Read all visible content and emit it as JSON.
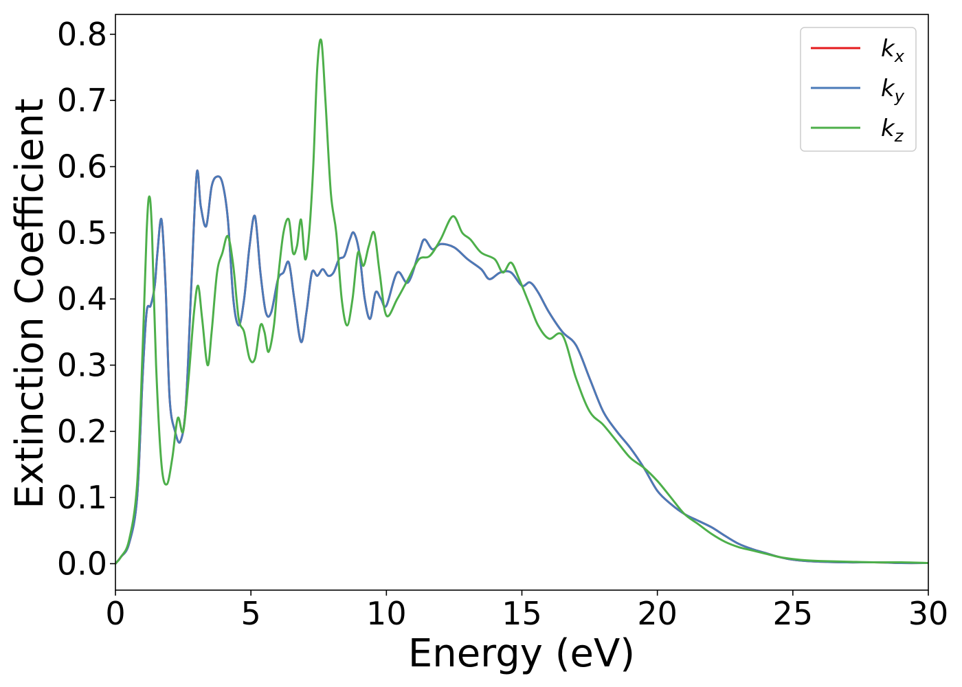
{
  "chart_data": {
    "type": "line",
    "title": "",
    "xlabel": "Energy (eV)",
    "ylabel": "Extinction Coefficient",
    "xlim": [
      0,
      30
    ],
    "ylim": [
      -0.04,
      0.83
    ],
    "xticks": [
      0,
      5,
      10,
      15,
      20,
      25,
      30
    ],
    "xtick_labels": [
      "0",
      "5",
      "10",
      "15",
      "20",
      "25",
      "30"
    ],
    "yticks": [
      0.0,
      0.1,
      0.2,
      0.3,
      0.4,
      0.5,
      0.6,
      0.7,
      0.8
    ],
    "ytick_labels": [
      "0.0",
      "0.1",
      "0.2",
      "0.3",
      "0.4",
      "0.5",
      "0.6",
      "0.7",
      "0.8"
    ],
    "grid": false,
    "legend": {
      "position": "top-right"
    },
    "series": [
      {
        "name": "kx",
        "legend_main": "k",
        "legend_sub": "x",
        "color": "#e41a1c",
        "x": [
          0,
          0.2,
          0.5,
          0.8,
          1.0,
          1.15,
          1.3,
          1.45,
          1.55,
          1.7,
          1.85,
          2.0,
          2.2,
          2.4,
          2.6,
          2.8,
          3.0,
          3.15,
          3.35,
          3.55,
          3.75,
          3.95,
          4.15,
          4.35,
          4.55,
          4.75,
          4.95,
          5.15,
          5.35,
          5.55,
          5.75,
          6.0,
          6.2,
          6.4,
          6.6,
          6.85,
          7.05,
          7.25,
          7.45,
          7.65,
          7.85,
          8.05,
          8.25,
          8.45,
          8.65,
          8.8,
          9.0,
          9.2,
          9.4,
          9.6,
          9.8,
          10.0,
          10.4,
          10.8,
          11.2,
          11.4,
          11.7,
          12.0,
          12.5,
          13.0,
          13.5,
          13.8,
          14.2,
          14.6,
          15.0,
          15.3,
          15.6,
          16.0,
          16.5,
          17.0,
          17.5,
          18.0,
          18.5,
          19.0,
          19.5,
          20.0,
          20.5,
          21.0,
          21.5,
          22.0,
          22.5,
          23.0,
          23.5,
          24.0,
          24.5,
          25.0,
          25.5,
          26.0,
          27.0,
          28.0,
          29.0,
          30.0
        ],
        "y": [
          0.0,
          0.01,
          0.03,
          0.1,
          0.28,
          0.38,
          0.39,
          0.42,
          0.47,
          0.52,
          0.42,
          0.25,
          0.2,
          0.185,
          0.24,
          0.42,
          0.59,
          0.54,
          0.51,
          0.57,
          0.585,
          0.575,
          0.52,
          0.4,
          0.36,
          0.4,
          0.48,
          0.525,
          0.44,
          0.38,
          0.38,
          0.43,
          0.44,
          0.455,
          0.4,
          0.335,
          0.38,
          0.44,
          0.435,
          0.445,
          0.435,
          0.44,
          0.46,
          0.465,
          0.49,
          0.5,
          0.47,
          0.4,
          0.37,
          0.41,
          0.4,
          0.39,
          0.44,
          0.425,
          0.47,
          0.49,
          0.475,
          0.483,
          0.478,
          0.46,
          0.445,
          0.43,
          0.44,
          0.44,
          0.42,
          0.425,
          0.41,
          0.38,
          0.35,
          0.33,
          0.28,
          0.23,
          0.2,
          0.175,
          0.145,
          0.11,
          0.09,
          0.075,
          0.065,
          0.055,
          0.042,
          0.03,
          0.022,
          0.016,
          0.01,
          0.006,
          0.004,
          0.003,
          0.002,
          0.002,
          0.001,
          0.001
        ]
      },
      {
        "name": "ky",
        "legend_main": "k",
        "legend_sub": "y",
        "color": "#4a7ab8",
        "x": [
          0,
          0.2,
          0.5,
          0.8,
          1.0,
          1.15,
          1.3,
          1.45,
          1.55,
          1.7,
          1.85,
          2.0,
          2.2,
          2.4,
          2.6,
          2.8,
          3.0,
          3.15,
          3.35,
          3.55,
          3.75,
          3.95,
          4.15,
          4.35,
          4.55,
          4.75,
          4.95,
          5.15,
          5.35,
          5.55,
          5.75,
          6.0,
          6.2,
          6.4,
          6.6,
          6.85,
          7.05,
          7.25,
          7.45,
          7.65,
          7.85,
          8.05,
          8.25,
          8.45,
          8.65,
          8.8,
          9.0,
          9.2,
          9.4,
          9.6,
          9.8,
          10.0,
          10.4,
          10.8,
          11.2,
          11.4,
          11.7,
          12.0,
          12.5,
          13.0,
          13.5,
          13.8,
          14.2,
          14.6,
          15.0,
          15.3,
          15.6,
          16.0,
          16.5,
          17.0,
          17.5,
          18.0,
          18.5,
          19.0,
          19.5,
          20.0,
          20.5,
          21.0,
          21.5,
          22.0,
          22.5,
          23.0,
          23.5,
          24.0,
          24.5,
          25.0,
          25.5,
          26.0,
          27.0,
          28.0,
          29.0,
          30.0
        ],
        "y": [
          0.0,
          0.01,
          0.03,
          0.1,
          0.28,
          0.38,
          0.39,
          0.42,
          0.47,
          0.52,
          0.42,
          0.25,
          0.2,
          0.185,
          0.24,
          0.42,
          0.59,
          0.54,
          0.51,
          0.57,
          0.585,
          0.575,
          0.52,
          0.4,
          0.36,
          0.4,
          0.48,
          0.525,
          0.44,
          0.38,
          0.38,
          0.43,
          0.44,
          0.455,
          0.4,
          0.335,
          0.38,
          0.44,
          0.435,
          0.445,
          0.435,
          0.44,
          0.46,
          0.465,
          0.49,
          0.5,
          0.47,
          0.4,
          0.37,
          0.41,
          0.4,
          0.39,
          0.44,
          0.425,
          0.47,
          0.49,
          0.475,
          0.483,
          0.478,
          0.46,
          0.445,
          0.43,
          0.44,
          0.44,
          0.42,
          0.425,
          0.41,
          0.38,
          0.35,
          0.33,
          0.28,
          0.23,
          0.2,
          0.175,
          0.145,
          0.11,
          0.09,
          0.075,
          0.065,
          0.055,
          0.042,
          0.03,
          0.022,
          0.016,
          0.01,
          0.006,
          0.004,
          0.003,
          0.002,
          0.002,
          0.001,
          0.001
        ]
      },
      {
        "name": "kz",
        "legend_main": "k",
        "legend_sub": "z",
        "color": "#4daf4a",
        "x": [
          0,
          0.2,
          0.5,
          0.8,
          1.0,
          1.15,
          1.25,
          1.35,
          1.5,
          1.7,
          1.9,
          2.1,
          2.3,
          2.5,
          2.7,
          2.9,
          3.05,
          3.2,
          3.4,
          3.55,
          3.75,
          3.95,
          4.15,
          4.35,
          4.55,
          4.75,
          4.95,
          5.15,
          5.35,
          5.5,
          5.65,
          5.85,
          6.0,
          6.2,
          6.4,
          6.55,
          6.7,
          6.85,
          7.0,
          7.15,
          7.3,
          7.45,
          7.6,
          7.75,
          7.95,
          8.15,
          8.35,
          8.55,
          8.75,
          8.95,
          9.15,
          9.35,
          9.55,
          9.75,
          10.0,
          10.4,
          10.8,
          11.2,
          11.6,
          12.0,
          12.45,
          12.8,
          13.1,
          13.5,
          14.0,
          14.3,
          14.6,
          14.9,
          15.3,
          15.6,
          16.0,
          16.5,
          17.0,
          17.5,
          18.0,
          18.5,
          19.0,
          19.5,
          20.0,
          20.5,
          21.0,
          21.5,
          22.0,
          22.5,
          23.0,
          23.5,
          24.0,
          24.5,
          25.0,
          25.5,
          26.0,
          27.0,
          28.0,
          29.0,
          30.0
        ],
        "y": [
          0.0,
          0.01,
          0.035,
          0.12,
          0.32,
          0.5,
          0.555,
          0.5,
          0.3,
          0.15,
          0.12,
          0.16,
          0.22,
          0.2,
          0.28,
          0.38,
          0.42,
          0.37,
          0.3,
          0.35,
          0.44,
          0.47,
          0.495,
          0.45,
          0.37,
          0.35,
          0.31,
          0.31,
          0.36,
          0.35,
          0.32,
          0.36,
          0.43,
          0.5,
          0.52,
          0.47,
          0.48,
          0.52,
          0.46,
          0.5,
          0.6,
          0.75,
          0.79,
          0.7,
          0.56,
          0.5,
          0.4,
          0.36,
          0.4,
          0.47,
          0.45,
          0.48,
          0.5,
          0.44,
          0.375,
          0.4,
          0.43,
          0.46,
          0.465,
          0.49,
          0.525,
          0.5,
          0.49,
          0.47,
          0.46,
          0.44,
          0.455,
          0.43,
          0.39,
          0.36,
          0.34,
          0.345,
          0.28,
          0.23,
          0.21,
          0.185,
          0.16,
          0.145,
          0.125,
          0.1,
          0.075,
          0.06,
          0.045,
          0.033,
          0.025,
          0.02,
          0.015,
          0.01,
          0.007,
          0.005,
          0.004,
          0.003,
          0.002,
          0.002,
          0.001
        ]
      }
    ]
  }
}
